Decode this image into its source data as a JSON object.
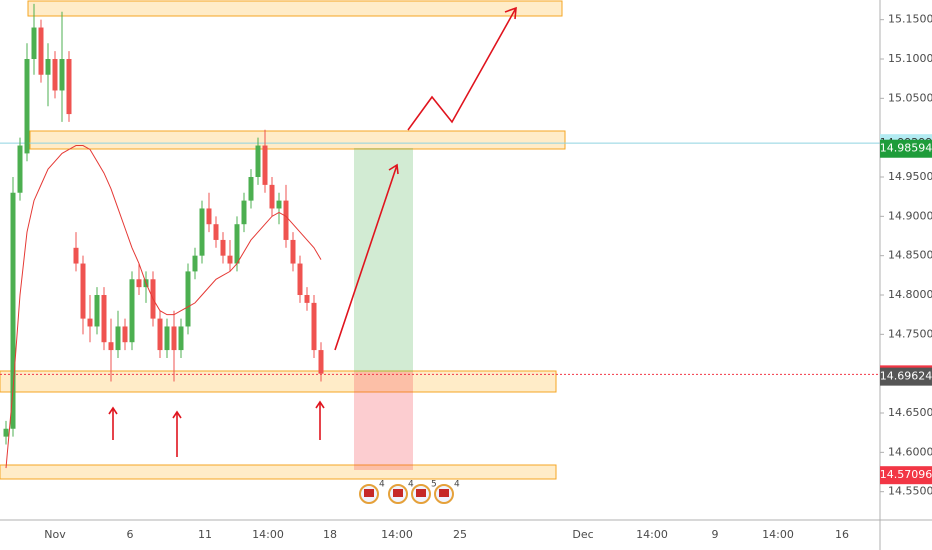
{
  "chart_data": {
    "type": "candlestick",
    "ylim": [
      14.514,
      15.175
    ],
    "yticks": [
      {
        "value": 15.15,
        "label": "15.15000"
      },
      {
        "value": 15.1,
        "label": "15.10000"
      },
      {
        "value": 15.05,
        "label": "15.05000"
      },
      {
        "value": 14.95,
        "label": "14.95000"
      },
      {
        "value": 14.9,
        "label": "14.90000"
      },
      {
        "value": 14.85,
        "label": "14.85000"
      },
      {
        "value": 14.8,
        "label": "14.80000"
      },
      {
        "value": 14.75,
        "label": "14.75000"
      },
      {
        "value": 14.65,
        "label": "14.65000"
      },
      {
        "value": 14.6,
        "label": "14.60000"
      },
      {
        "value": 14.55,
        "label": "14.55000"
      }
    ],
    "xticks": [
      "Nov",
      "6",
      "11",
      "14:00",
      "18",
      "14:00",
      "25",
      "Dec",
      "14:00",
      "9",
      "14:00",
      "16"
    ],
    "up_color": "#4caf50",
    "down_color": "#ef5350",
    "candles": [
      [
        14.62,
        14.64,
        14.61,
        14.63
      ],
      [
        14.63,
        14.95,
        14.62,
        14.93
      ],
      [
        14.93,
        15.0,
        14.92,
        14.99
      ],
      [
        14.98,
        15.12,
        14.97,
        15.1
      ],
      [
        15.1,
        15.17,
        15.08,
        15.14
      ],
      [
        15.14,
        15.15,
        15.07,
        15.08
      ],
      [
        15.08,
        15.12,
        15.04,
        15.1
      ],
      [
        15.1,
        15.11,
        15.05,
        15.06
      ],
      [
        15.06,
        15.16,
        15.02,
        15.1
      ],
      [
        15.1,
        15.11,
        15.02,
        15.03
      ],
      [
        14.86,
        14.88,
        14.83,
        14.84
      ],
      [
        14.84,
        14.85,
        14.75,
        14.77
      ],
      [
        14.77,
        14.8,
        14.74,
        14.76
      ],
      [
        14.76,
        14.81,
        14.75,
        14.8
      ],
      [
        14.8,
        14.81,
        14.73,
        14.74
      ],
      [
        14.74,
        14.77,
        14.69,
        14.73
      ],
      [
        14.73,
        14.78,
        14.72,
        14.76
      ],
      [
        14.76,
        14.77,
        14.73,
        14.74
      ],
      [
        14.74,
        14.83,
        14.73,
        14.82
      ],
      [
        14.82,
        14.84,
        14.8,
        14.81
      ],
      [
        14.81,
        14.83,
        14.79,
        14.82
      ],
      [
        14.82,
        14.83,
        14.76,
        14.77
      ],
      [
        14.77,
        14.78,
        14.72,
        14.73
      ],
      [
        14.73,
        14.77,
        14.72,
        14.76
      ],
      [
        14.76,
        14.78,
        14.69,
        14.73
      ],
      [
        14.73,
        14.77,
        14.72,
        14.76
      ],
      [
        14.76,
        14.84,
        14.75,
        14.83
      ],
      [
        14.83,
        14.86,
        14.82,
        14.85
      ],
      [
        14.85,
        14.92,
        14.84,
        14.91
      ],
      [
        14.91,
        14.93,
        14.88,
        14.89
      ],
      [
        14.89,
        14.9,
        14.86,
        14.87
      ],
      [
        14.87,
        14.88,
        14.84,
        14.85
      ],
      [
        14.85,
        14.87,
        14.83,
        14.84
      ],
      [
        14.84,
        14.9,
        14.83,
        14.89
      ],
      [
        14.89,
        14.93,
        14.88,
        14.92
      ],
      [
        14.92,
        14.96,
        14.91,
        14.95
      ],
      [
        14.95,
        15.0,
        14.94,
        14.99
      ],
      [
        14.99,
        15.01,
        14.93,
        14.94
      ],
      [
        14.94,
        14.95,
        14.9,
        14.91
      ],
      [
        14.91,
        14.93,
        14.89,
        14.92
      ],
      [
        14.92,
        14.94,
        14.86,
        14.87
      ],
      [
        14.87,
        14.88,
        14.83,
        14.84
      ],
      [
        14.84,
        14.85,
        14.79,
        14.8
      ],
      [
        14.8,
        14.81,
        14.78,
        14.79
      ],
      [
        14.79,
        14.8,
        14.72,
        14.73
      ],
      [
        14.73,
        14.74,
        14.69,
        14.7
      ]
    ],
    "moving_average": {
      "color": "#e53935",
      "values": [
        14.58,
        14.68,
        14.8,
        14.88,
        14.92,
        14.94,
        14.96,
        14.97,
        14.98,
        14.985,
        14.99,
        14.99,
        14.985,
        14.97,
        14.955,
        14.935,
        14.91,
        14.885,
        14.86,
        14.84,
        14.815,
        14.795,
        14.78,
        14.775,
        14.775,
        14.78,
        14.785,
        14.79,
        14.8,
        14.81,
        14.82,
        14.825,
        14.83,
        14.84,
        14.855,
        14.87,
        14.88,
        14.89,
        14.9,
        14.905,
        14.9,
        14.89,
        14.88,
        14.87,
        14.86,
        14.845
      ]
    },
    "price_tags": [
      {
        "value": 14.99299,
        "color": "#b2ebf2",
        "text_color": "#333333",
        "line": "#8fd3e0"
      },
      {
        "value": 14.98594,
        "color": "#1e9c3a",
        "text_color": "#ffffff"
      },
      {
        "value": 14.69912,
        "color": "#f23645",
        "text_color": "#ffffff",
        "line": "#f23645"
      },
      {
        "value": 14.69624,
        "color": "#555555",
        "text_color": "#ffffff"
      },
      {
        "value": 14.57096,
        "color": "#f23645",
        "text_color": "#ffffff"
      }
    ],
    "events": [
      "4",
      "4",
      "5",
      "4"
    ]
  }
}
